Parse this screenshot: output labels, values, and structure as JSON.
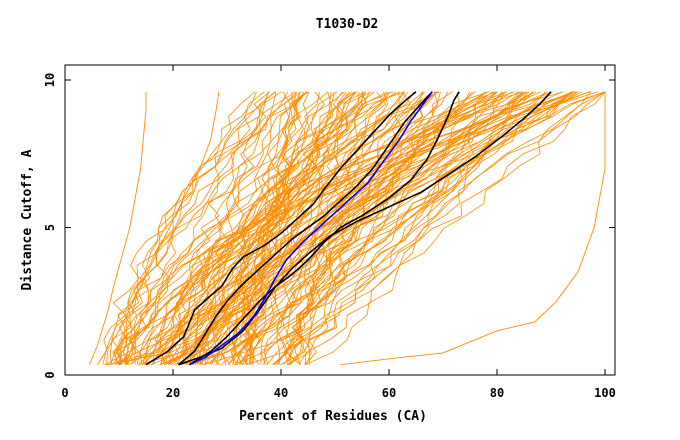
{
  "chart_data": {
    "type": "line",
    "title": "T1030-D2",
    "xlabel": "Percent of Residues (CA)",
    "ylabel": "Distance Cutoff, A",
    "xlim": [
      0,
      100
    ],
    "ylim": [
      0,
      10
    ],
    "x_ticks": [
      0,
      20,
      40,
      60,
      80,
      100
    ],
    "y_ticks": [
      0,
      5,
      10
    ],
    "x_tick_labels": [
      "0",
      "20",
      "40",
      "60",
      "80",
      "100"
    ],
    "y_tick_labels": [
      "0",
      "5",
      "10"
    ],
    "grid": false,
    "legend": "none",
    "colors": {
      "background": "#ffffff",
      "frame": "#000000",
      "models": "#ff8c00",
      "highlight_black": "#000000",
      "highlight_blue": "#0000ff"
    },
    "orange_models": {
      "count": 140,
      "description_free": true,
      "x_at_cutoff_0_4": {
        "min": 4,
        "max": 51
      },
      "x_at_cutoff_9_6": {
        "min": 15,
        "max": 100
      }
    },
    "series": [
      {
        "color": "#ff8c00",
        "points": [
          [
            4.5,
            0.35
          ],
          [
            6,
            1
          ],
          [
            8,
            2.2
          ],
          [
            9,
            3
          ],
          [
            10.5,
            4
          ],
          [
            12,
            5
          ],
          [
            13,
            6
          ],
          [
            14,
            7
          ],
          [
            14.5,
            8
          ],
          [
            15,
            9
          ],
          [
            15,
            9.6
          ]
        ]
      },
      {
        "color": "#ff8c00",
        "points": [
          [
            6,
            0.35
          ],
          [
            10,
            1.5
          ],
          [
            14,
            3
          ],
          [
            18,
            4.5
          ],
          [
            22,
            6
          ],
          [
            25,
            7
          ],
          [
            27,
            8
          ],
          [
            28,
            9
          ],
          [
            28.5,
            9.6
          ]
        ]
      },
      {
        "color": "#ff8c00",
        "points": [
          [
            51,
            0.35
          ],
          [
            60,
            0.55
          ],
          [
            70,
            0.75
          ],
          [
            80,
            1.5
          ],
          [
            87,
            1.8
          ],
          [
            91,
            2.5
          ],
          [
            95,
            3.5
          ],
          [
            98,
            5
          ],
          [
            99,
            6
          ],
          [
            100,
            7
          ],
          [
            100,
            9.6
          ]
        ]
      },
      {
        "color": "#000000",
        "points": [
          [
            15,
            0.35
          ],
          [
            19,
            0.8
          ],
          [
            22,
            1.3
          ],
          [
            24,
            2.2
          ],
          [
            27,
            2.7
          ],
          [
            29,
            3
          ],
          [
            31,
            3.6
          ],
          [
            33,
            4
          ],
          [
            35,
            4.2
          ],
          [
            37,
            4.4
          ],
          [
            40,
            4.8
          ],
          [
            43,
            5.3
          ],
          [
            46,
            5.8
          ],
          [
            48,
            6.3
          ],
          [
            51,
            7
          ],
          [
            54,
            7.6
          ],
          [
            57,
            8.2
          ],
          [
            60,
            8.8
          ],
          [
            63,
            9.3
          ],
          [
            65,
            9.6
          ]
        ]
      },
      {
        "color": "#000000",
        "points": [
          [
            21,
            0.35
          ],
          [
            24,
            0.8
          ],
          [
            26,
            1.4
          ],
          [
            28,
            2
          ],
          [
            30,
            2.5
          ],
          [
            33,
            3.1
          ],
          [
            36,
            3.6
          ],
          [
            39,
            4.1
          ],
          [
            42,
            4.6
          ],
          [
            45,
            5
          ],
          [
            48,
            5.4
          ],
          [
            51,
            5.9
          ],
          [
            54,
            6.4
          ],
          [
            57,
            7
          ],
          [
            60,
            7.8
          ],
          [
            63,
            8.6
          ],
          [
            66,
            9.2
          ],
          [
            68,
            9.6
          ]
        ]
      },
      {
        "color": "#000000",
        "points": [
          [
            23,
            0.35
          ],
          [
            27,
            0.8
          ],
          [
            30,
            1.3
          ],
          [
            33,
            1.9
          ],
          [
            36,
            2.5
          ],
          [
            39,
            3
          ],
          [
            42,
            3.4
          ],
          [
            45,
            3.9
          ],
          [
            48,
            4.5
          ],
          [
            51,
            5
          ],
          [
            55,
            5.4
          ],
          [
            60,
            6
          ],
          [
            64,
            6.6
          ],
          [
            67,
            7.3
          ],
          [
            69,
            8
          ],
          [
            71,
            8.8
          ],
          [
            72,
            9.3
          ],
          [
            73,
            9.6
          ]
        ]
      },
      {
        "color": "#000000",
        "points": [
          [
            21,
            0.35
          ],
          [
            25,
            0.6
          ],
          [
            29,
            0.9
          ],
          [
            33,
            1.5
          ],
          [
            36,
            2.2
          ],
          [
            39,
            3
          ],
          [
            42,
            3.6
          ],
          [
            45,
            4.1
          ],
          [
            49,
            4.7
          ],
          [
            54,
            5.2
          ],
          [
            60,
            5.7
          ],
          [
            66,
            6.2
          ],
          [
            71,
            6.8
          ],
          [
            76,
            7.4
          ],
          [
            81,
            8.1
          ],
          [
            85,
            8.7
          ],
          [
            88,
            9.2
          ],
          [
            90,
            9.6
          ]
        ]
      },
      {
        "color": "#0000ff",
        "points": [
          [
            23,
            0.35
          ],
          [
            26,
            0.6
          ],
          [
            29,
            1
          ],
          [
            32,
            1.4
          ],
          [
            35,
            2
          ],
          [
            37,
            2.6
          ],
          [
            39,
            3.3
          ],
          [
            41,
            3.9
          ],
          [
            44,
            4.5
          ],
          [
            47,
            5
          ],
          [
            50,
            5.5
          ],
          [
            53,
            6
          ],
          [
            56,
            6.5
          ],
          [
            58,
            7
          ],
          [
            60,
            7.5
          ],
          [
            62,
            8
          ],
          [
            64,
            8.6
          ],
          [
            66,
            9.1
          ],
          [
            68,
            9.6
          ]
        ]
      }
    ]
  }
}
